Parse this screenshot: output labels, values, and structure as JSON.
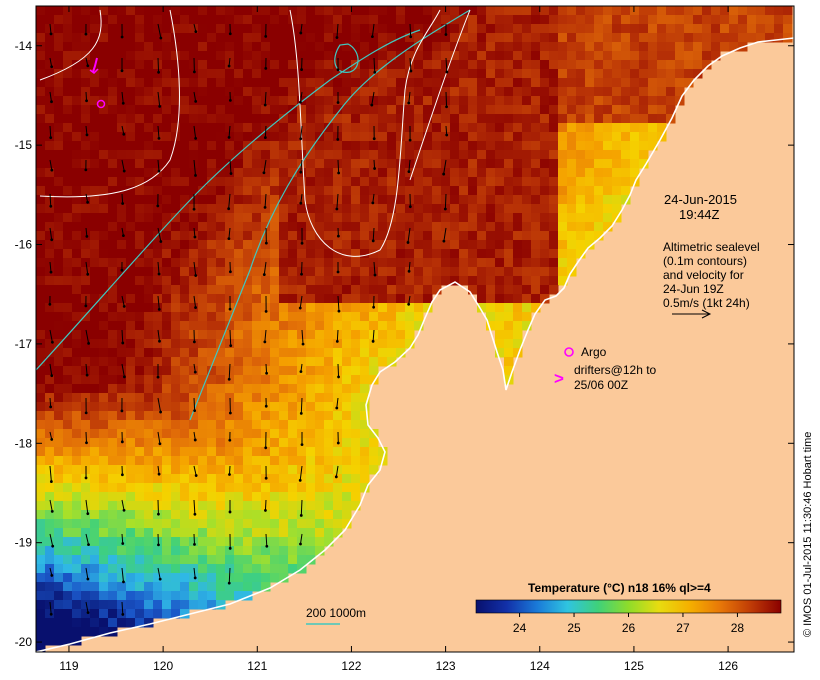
{
  "map": {
    "lon_ticks": [
      "119",
      "120",
      "121",
      "122",
      "123",
      "124",
      "125",
      "126"
    ],
    "lat_ticks": [
      "-14",
      "-15",
      "-16",
      "-17",
      "-18",
      "-19",
      "-20"
    ],
    "lon_range": [
      118.65,
      126.7
    ],
    "lat_range": [
      -20.1,
      -13.6
    ],
    "land_color": "#fbc99a",
    "ocean_palette": [
      "#08106e",
      "#1a56c8",
      "#2fb8e6",
      "#3fd17a",
      "#a6e02a",
      "#f5d200",
      "#f5a000",
      "#e06a08",
      "#b83206",
      "#8a0000"
    ]
  },
  "annotations": {
    "date": "24-Jun-2015",
    "time": "19:44Z",
    "alt_line1": "Altimetric sealevel",
    "alt_line2": "(0.1m contours)",
    "alt_line3": "and velocity for",
    "alt_line4": "24-Jun 19Z",
    "alt_line5": "0.5m/s (1kt 24h)",
    "argo_label": "Argo",
    "drifter_line1": "drifters@12h to",
    "drifter_line2": "25/06 00Z",
    "drifter_marker": ">",
    "bathy_label": "200  1000m"
  },
  "colorbar": {
    "title": "Temperature (°C) n18 16% ql>=4",
    "ticks": [
      "24",
      "25",
      "26",
      "27",
      "28"
    ],
    "range": [
      23.2,
      28.8
    ]
  },
  "credit": "© IMOS 01-Jul-2015 11:30:46 Hobart time"
}
